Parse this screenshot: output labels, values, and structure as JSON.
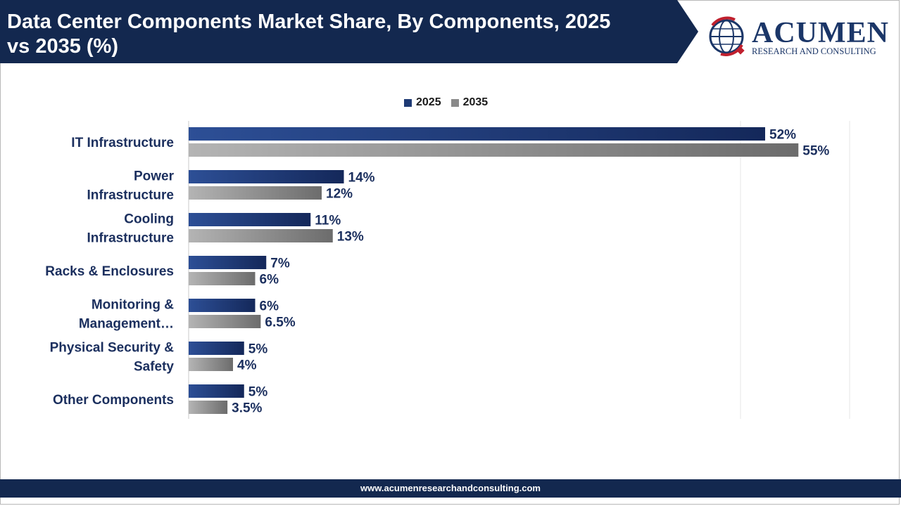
{
  "header": {
    "title_line1": "Data Center Components Market Share, By Components, 2025",
    "title_line2": "vs 2035 (%)",
    "logo_name": "ACUMEN",
    "logo_tagline": "RESEARCH AND CONSULTING"
  },
  "footer": {
    "url": "www.acumenresearchandconsulting.com"
  },
  "colors": {
    "header_band": "#13284f",
    "series_2025": "#1e3a74",
    "series_2035": "#8a8a8a",
    "label_text": "#1b2f5e",
    "logo_red": "#c0202e"
  },
  "chart_data": {
    "type": "bar",
    "orientation": "horizontal",
    "categories": [
      [
        "IT Infrastructure"
      ],
      [
        "Power",
        "Infrastructure"
      ],
      [
        "Cooling",
        "Infrastructure"
      ],
      [
        "Racks & Enclosures"
      ],
      [
        "Monitoring &",
        "Management…"
      ],
      [
        "Physical Security &",
        "Safety"
      ],
      [
        "Other Components"
      ]
    ],
    "series": [
      {
        "name": "2025",
        "values": [
          52,
          14,
          11,
          7,
          6,
          5,
          5
        ],
        "labels": [
          "52%",
          "14%",
          "11%",
          "7%",
          "6%",
          "5%",
          "5%"
        ]
      },
      {
        "name": "2035",
        "values": [
          55,
          12,
          13,
          6,
          6.5,
          4,
          3.5
        ],
        "labels": [
          "55%",
          "12%",
          "13%",
          "6%",
          "6.5%",
          "4%",
          "3.5%"
        ]
      }
    ],
    "legend": "top",
    "grid": true,
    "xlim": [
      0,
      60
    ]
  }
}
